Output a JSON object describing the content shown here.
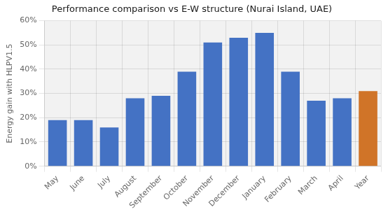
{
  "chart_data": {
    "type": "bar",
    "title": "Performance comparison vs E-W structure (Nurai Island, UAE)",
    "ylabel": "Energy gain with HLPV1.5",
    "categories": [
      "May",
      "June",
      "July",
      "August",
      "September",
      "October",
      "November",
      "December",
      "January",
      "February",
      "March",
      "April",
      "Year"
    ],
    "values": [
      0.19,
      0.19,
      0.16,
      0.28,
      0.29,
      0.39,
      0.51,
      0.53,
      0.55,
      0.39,
      0.27,
      0.28,
      0.31
    ],
    "colors": [
      "#4472C4",
      "#4472C4",
      "#4472C4",
      "#4472C4",
      "#4472C4",
      "#4472C4",
      "#4472C4",
      "#4472C4",
      "#4472C4",
      "#4472C4",
      "#4472C4",
      "#4472C4",
      "#D07428"
    ],
    "ylim": [
      0,
      0.6
    ],
    "yticks": [
      {
        "value": 0.0,
        "label": "0%"
      },
      {
        "value": 0.1,
        "label": "10%"
      },
      {
        "value": 0.2,
        "label": "20%"
      },
      {
        "value": 0.3,
        "label": "30%"
      },
      {
        "value": 0.4,
        "label": "40%"
      },
      {
        "value": 0.5,
        "label": "50%"
      },
      {
        "value": 0.6,
        "label": "60%"
      }
    ],
    "grid": true
  }
}
